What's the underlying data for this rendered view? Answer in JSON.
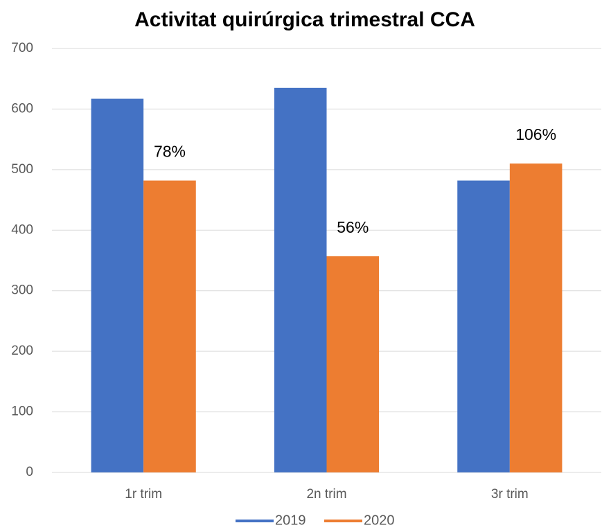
{
  "chart_data": {
    "type": "bar",
    "title": "Activitat quirúrgica trimestral CCA",
    "categories": [
      "1r trim",
      "2n trim",
      "3r trim"
    ],
    "series": [
      {
        "name": "2019",
        "color": "#4472c4",
        "values": [
          617,
          635,
          482
        ]
      },
      {
        "name": "2020",
        "color": "#ed7d31",
        "values": [
          482,
          357,
          510
        ]
      }
    ],
    "annotations": [
      "78%",
      "56%",
      "106%"
    ],
    "ylim": [
      0,
      700
    ],
    "yticks": [
      0,
      100,
      200,
      300,
      400,
      500,
      600,
      700
    ],
    "grid": true,
    "legend": "bottom"
  }
}
